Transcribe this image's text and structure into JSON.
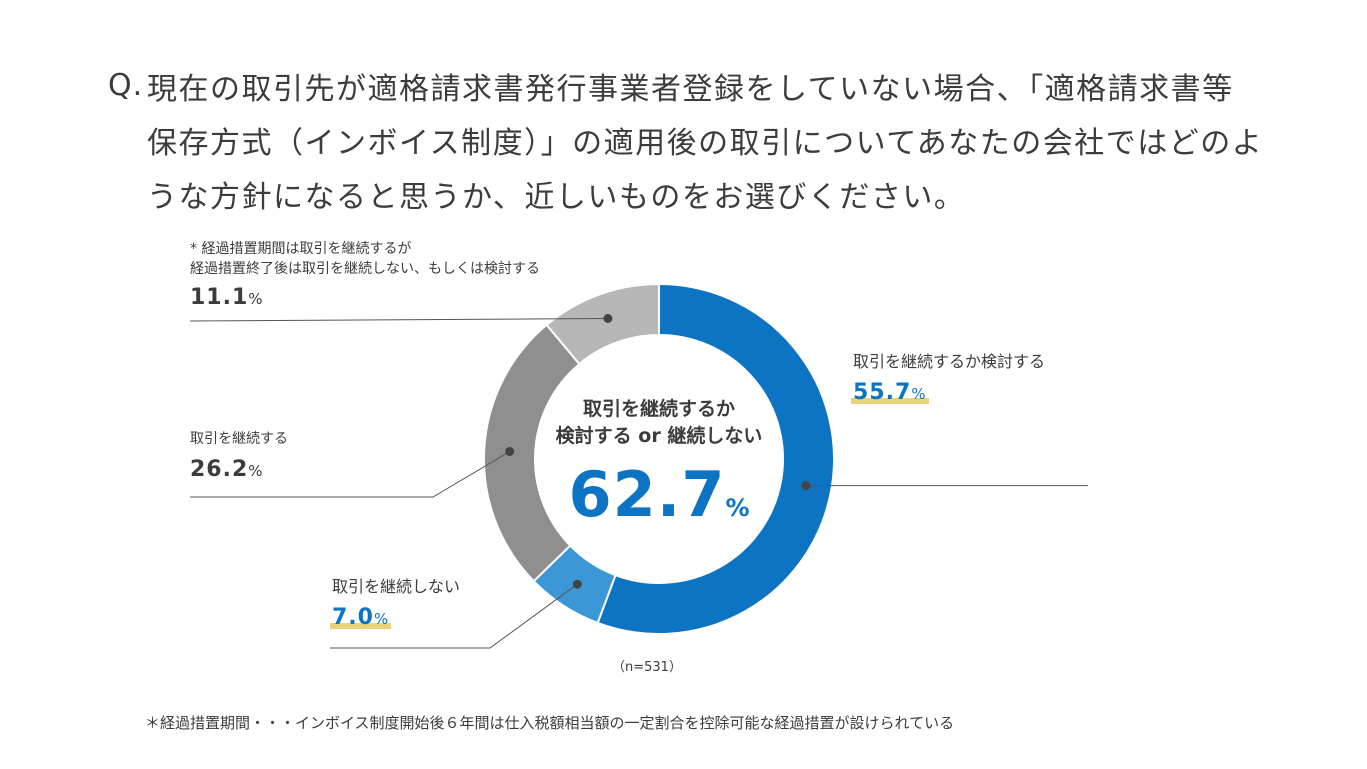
{
  "question": {
    "prefix": "Q.",
    "lines": [
      "現在の取引先が適格請求書発行事業者登録をしていない場合、「適格請求書等",
      "保存方式（インボイス制度）」の適用後の取引についてあなたの会社ではどのよ",
      "うな方針になると思うか、近しいものをお選びください。"
    ]
  },
  "chart_data": {
    "type": "pie",
    "donut": true,
    "slices": [
      {
        "label": "取引を継続するか検討する",
        "value": 55.7,
        "display": "55.7",
        "color": "#0d74c4"
      },
      {
        "label": "取引を継続しない",
        "value": 7.0,
        "display": "7.0",
        "color": "#3b97d6"
      },
      {
        "label": "取引を継続する",
        "value": 26.2,
        "display": "26.2",
        "color": "#8f8f8f"
      },
      {
        "label_lines": [
          "* 経過措置期間は取引を継続するが",
          "経過措置終了後は取引を継続しない、もしくは検討する"
        ],
        "value": 11.1,
        "display": "11.1",
        "color": "#b7b7b7"
      }
    ],
    "unit": "%",
    "center": {
      "line1": "取引を継続するか",
      "line2": "検討する or 継続しない",
      "value": "62.7",
      "unit": "%"
    },
    "n_label": "（n=531）"
  },
  "footnote": "＊経過措置期間・・・インボイス制度開始後６年間は仕入税額相当額の一定割合を控除可能な経過措置が設けられている"
}
